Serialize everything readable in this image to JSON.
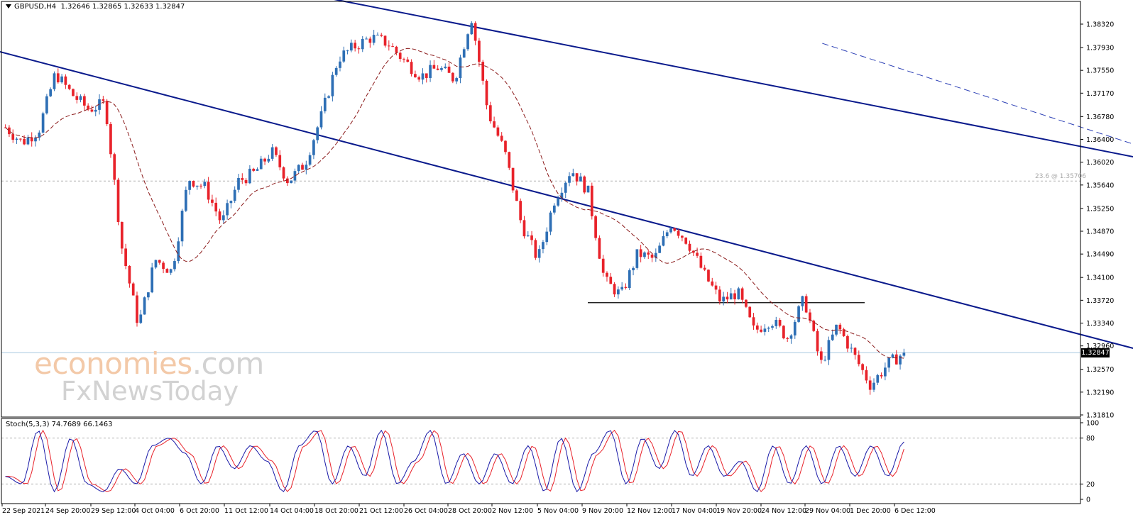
{
  "header": {
    "symbol": "GBPUSD,H4",
    "ohlc": "1.32646 1.32865 1.32633 1.32847"
  },
  "stoch_header": "Stoch(5,3,3) 74.7689 66.1463",
  "current_price_label": "1.32847",
  "fibo_label": "23.6 @ 1.35706",
  "watermark": {
    "line1_a": "economies",
    "line1_b": ".com",
    "line2": "FxNewsToday"
  },
  "colors": {
    "bull": "#2e6fb5",
    "bear": "#e8222a",
    "channel": "#0a1a8c",
    "ma": "#8b1a1a",
    "stoch_main": "#1a1aa8",
    "stoch_signal": "#e8222a",
    "fib_line": "#b0b0b0",
    "price_line": "#a8c8e0"
  },
  "chart_data": [
    {
      "type": "candlestick",
      "title": "GBPUSD,H4",
      "y_ticks": [
        "1.38320",
        "1.37930",
        "1.37550",
        "1.37170",
        "1.36780",
        "1.36400",
        "1.36020",
        "1.35640",
        "1.35250",
        "1.34870",
        "1.34490",
        "1.34100",
        "1.33720",
        "1.33340",
        "1.32960",
        "1.32570",
        "1.32190",
        "1.31810"
      ],
      "ylim": [
        1.3167,
        1.3856
      ],
      "x_ticks": [
        "22 Sep 2021",
        "24 Sep 20:00",
        "29 Sep 12:00",
        "4 Oct 04:00",
        "6 Oct 20:00",
        "11 Oct 12:00",
        "14 Oct 04:00",
        "18 Oct 20:00",
        "21 Oct 12:00",
        "26 Oct 04:00",
        "28 Oct 20:00",
        "2 Nov 12:00",
        "5 Nov 04:00",
        "9 Nov 20:00",
        "12 Nov 12:00",
        "17 Nov 04:00",
        "19 Nov 20:00",
        "24 Nov 12:00",
        "29 Nov 04:00",
        "1 Dec 20:00",
        "6 Dec 12:00"
      ],
      "close_path": [
        1.366,
        1.3635,
        1.3655,
        1.375,
        1.3715,
        1.369,
        1.37,
        1.346,
        1.333,
        1.344,
        1.342,
        1.3575,
        1.356,
        1.35,
        1.357,
        1.3585,
        1.362,
        1.357,
        1.36,
        1.368,
        1.3775,
        1.3795,
        1.381,
        1.38,
        1.377,
        1.3745,
        1.376,
        1.374,
        1.3845,
        1.3685,
        1.362,
        1.35,
        1.344,
        1.354,
        1.359,
        1.3555,
        1.3405,
        1.338,
        1.345,
        1.344,
        1.35,
        1.347,
        1.3415,
        1.337,
        1.3385,
        1.332,
        1.334,
        1.331,
        1.3375,
        1.3265,
        1.333,
        1.328,
        1.323,
        1.3265,
        1.32847
      ],
      "current_price": 1.32847,
      "fibonacci": {
        "level": "23.6",
        "price": 1.35706
      },
      "horizontal_line": 1.3368,
      "channel_upper": [
        [
          12,
          1.3916
        ],
        [
          140,
          1.3214
        ]
      ],
      "channel_lower": [
        [
          -0.5,
          1.3788
        ],
        [
          83,
          1.318
        ]
      ],
      "dashed_trendline": [
        [
          49,
          1.38
        ],
        [
          108,
          1.3268
        ]
      ],
      "moving_average": "dashed",
      "grid": false
    },
    {
      "type": "line",
      "title": "Stoch(5,3,3) 74.7689 66.1463",
      "y_ticks": [
        "100",
        "80",
        "20",
        "0"
      ],
      "ylim": [
        0,
        100
      ],
      "levels": [
        80,
        20
      ],
      "main_value": 74.7689,
      "signal_value": 66.1463,
      "series": [
        {
          "values": [
            30,
            20,
            90,
            10,
            80,
            20,
            10,
            40,
            20,
            70,
            80,
            60,
            20,
            70,
            40,
            70,
            50,
            10,
            70,
            90,
            20,
            70,
            30,
            90,
            20,
            50,
            90,
            20,
            60,
            20,
            60,
            20,
            70,
            10,
            80,
            10,
            60,
            90,
            20,
            80,
            40,
            90,
            30,
            70,
            30,
            50,
            10,
            70,
            20,
            70,
            20,
            70,
            30,
            70,
            30,
            75
          ]
        }
      ]
    }
  ]
}
